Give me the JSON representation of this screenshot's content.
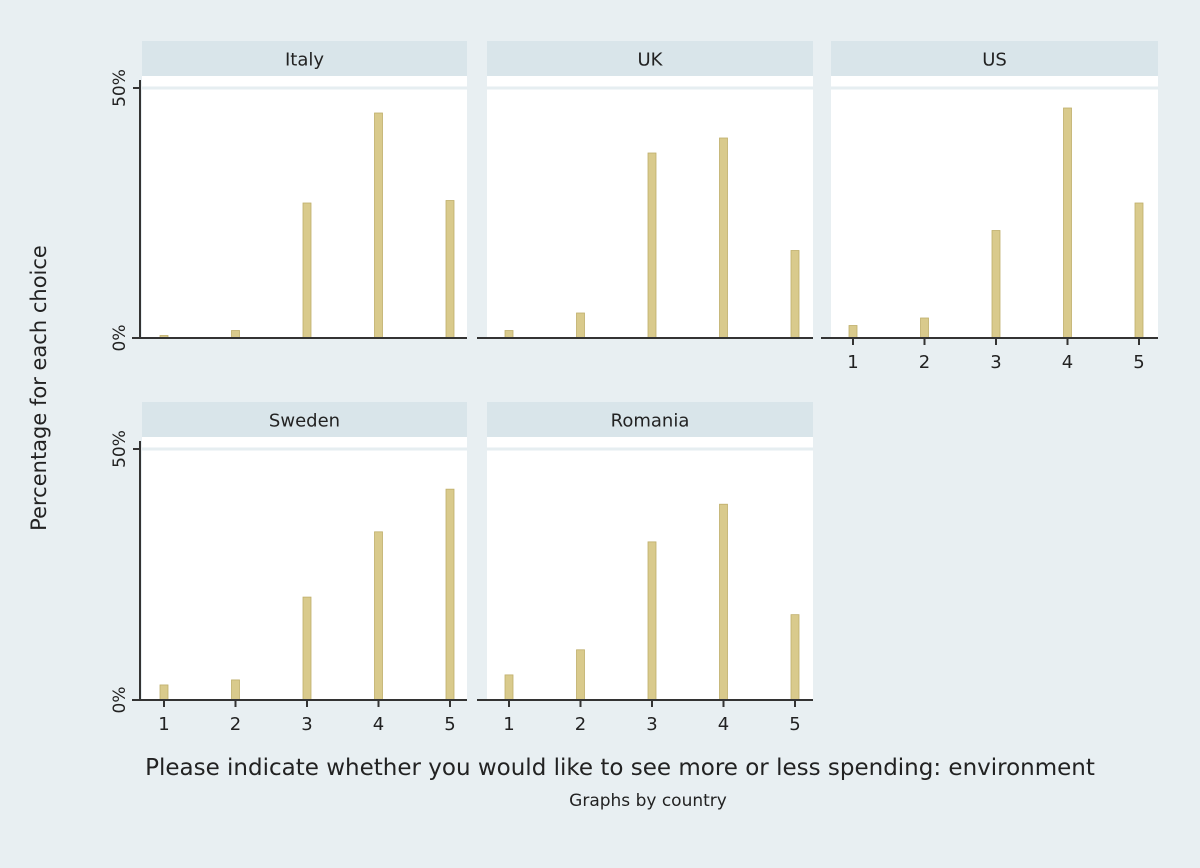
{
  "figure": {
    "ylabel": "Percentage for each choice",
    "xlabel": "Please indicate whether you would like to see more or less spending: environment",
    "note": "Graphs by country"
  },
  "colors": {
    "outer_background": "#e8eff2",
    "plot_background": "#ffffff",
    "strip_background": "#d9e5ea",
    "bar_fill": "#d9ca8c",
    "bar_stroke": "#bfae6a",
    "axis": "#333333",
    "grid": "#e6eef1"
  },
  "chart_data": {
    "type": "bar",
    "categories": [
      "1",
      "2",
      "3",
      "4",
      "5"
    ],
    "y_tick_labels": [
      "0%",
      "50%"
    ],
    "ylim": [
      0,
      0.5
    ],
    "grid": true,
    "panels": [
      {
        "name": "Italy",
        "values": [
          0.005,
          0.015,
          0.27,
          0.45,
          0.275
        ]
      },
      {
        "name": "UK",
        "values": [
          0.015,
          0.05,
          0.37,
          0.4,
          0.175
        ]
      },
      {
        "name": "US",
        "values": [
          0.025,
          0.04,
          0.215,
          0.46,
          0.27
        ]
      },
      {
        "name": "Sweden",
        "values": [
          0.03,
          0.04,
          0.205,
          0.335,
          0.42
        ]
      },
      {
        "name": "Romania",
        "values": [
          0.05,
          0.1,
          0.315,
          0.39,
          0.17
        ]
      }
    ]
  }
}
